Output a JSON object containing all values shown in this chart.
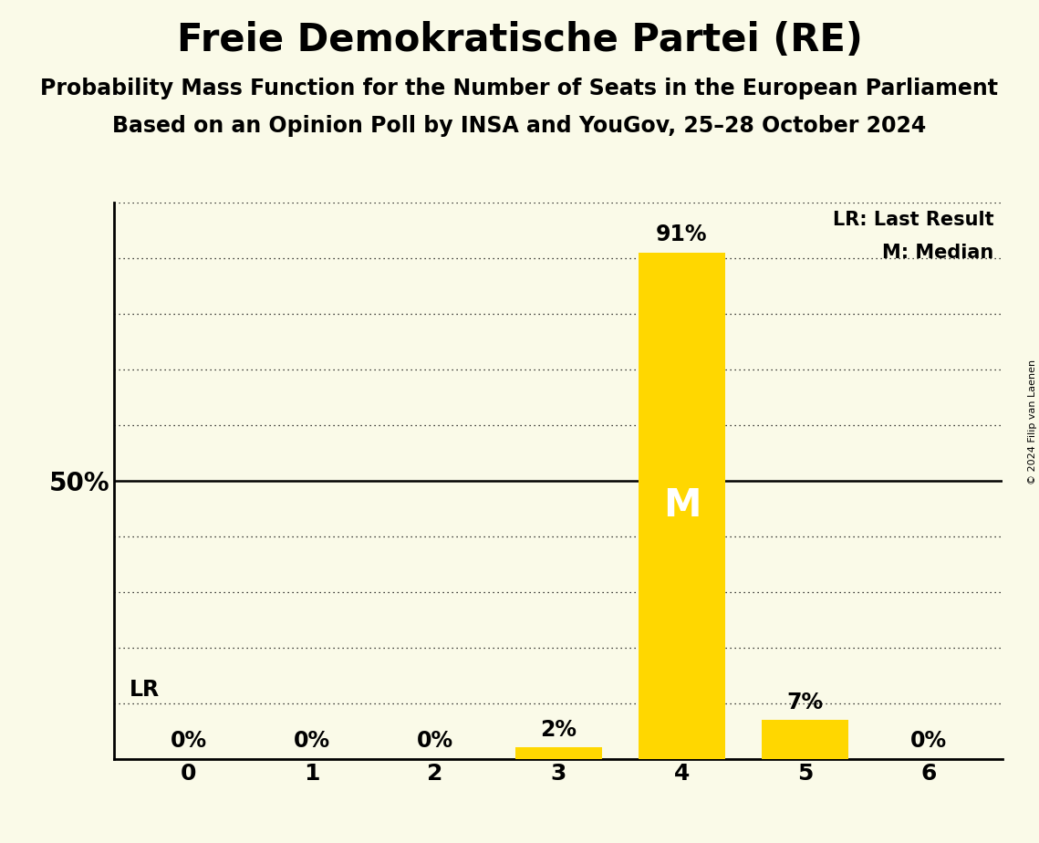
{
  "title": "Freie Demokratische Partei (RE)",
  "subtitle1": "Probability Mass Function for the Number of Seats in the European Parliament",
  "subtitle2": "Based on an Opinion Poll by INSA and YouGov, 25–28 October 2024",
  "copyright": "© 2024 Filip van Laenen",
  "categories": [
    0,
    1,
    2,
    3,
    4,
    5,
    6
  ],
  "values": [
    0,
    0,
    0,
    2,
    91,
    7,
    0
  ],
  "bar_color": "#FFD700",
  "median_bar": 4,
  "last_result_bar": 0,
  "fifty_pct_line": 50,
  "background_color": "#FAFAE8",
  "bar_label_color_normal": "#000000",
  "bar_label_color_median": "#FFFFFF",
  "ylabel_text": "50%",
  "legend_lr": "LR: Last Result",
  "legend_m": "M: Median",
  "ylim": [
    0,
    100
  ],
  "yticks": [
    0,
    10,
    20,
    30,
    40,
    50,
    60,
    70,
    80,
    90,
    100
  ],
  "title_fontsize": 30,
  "subtitle_fontsize": 17,
  "bar_label_fontsize": 17,
  "axis_tick_fontsize": 18,
  "legend_fontsize": 15,
  "ylabel_fontsize": 20,
  "median_label_fontsize": 30,
  "lr_fontsize": 17
}
